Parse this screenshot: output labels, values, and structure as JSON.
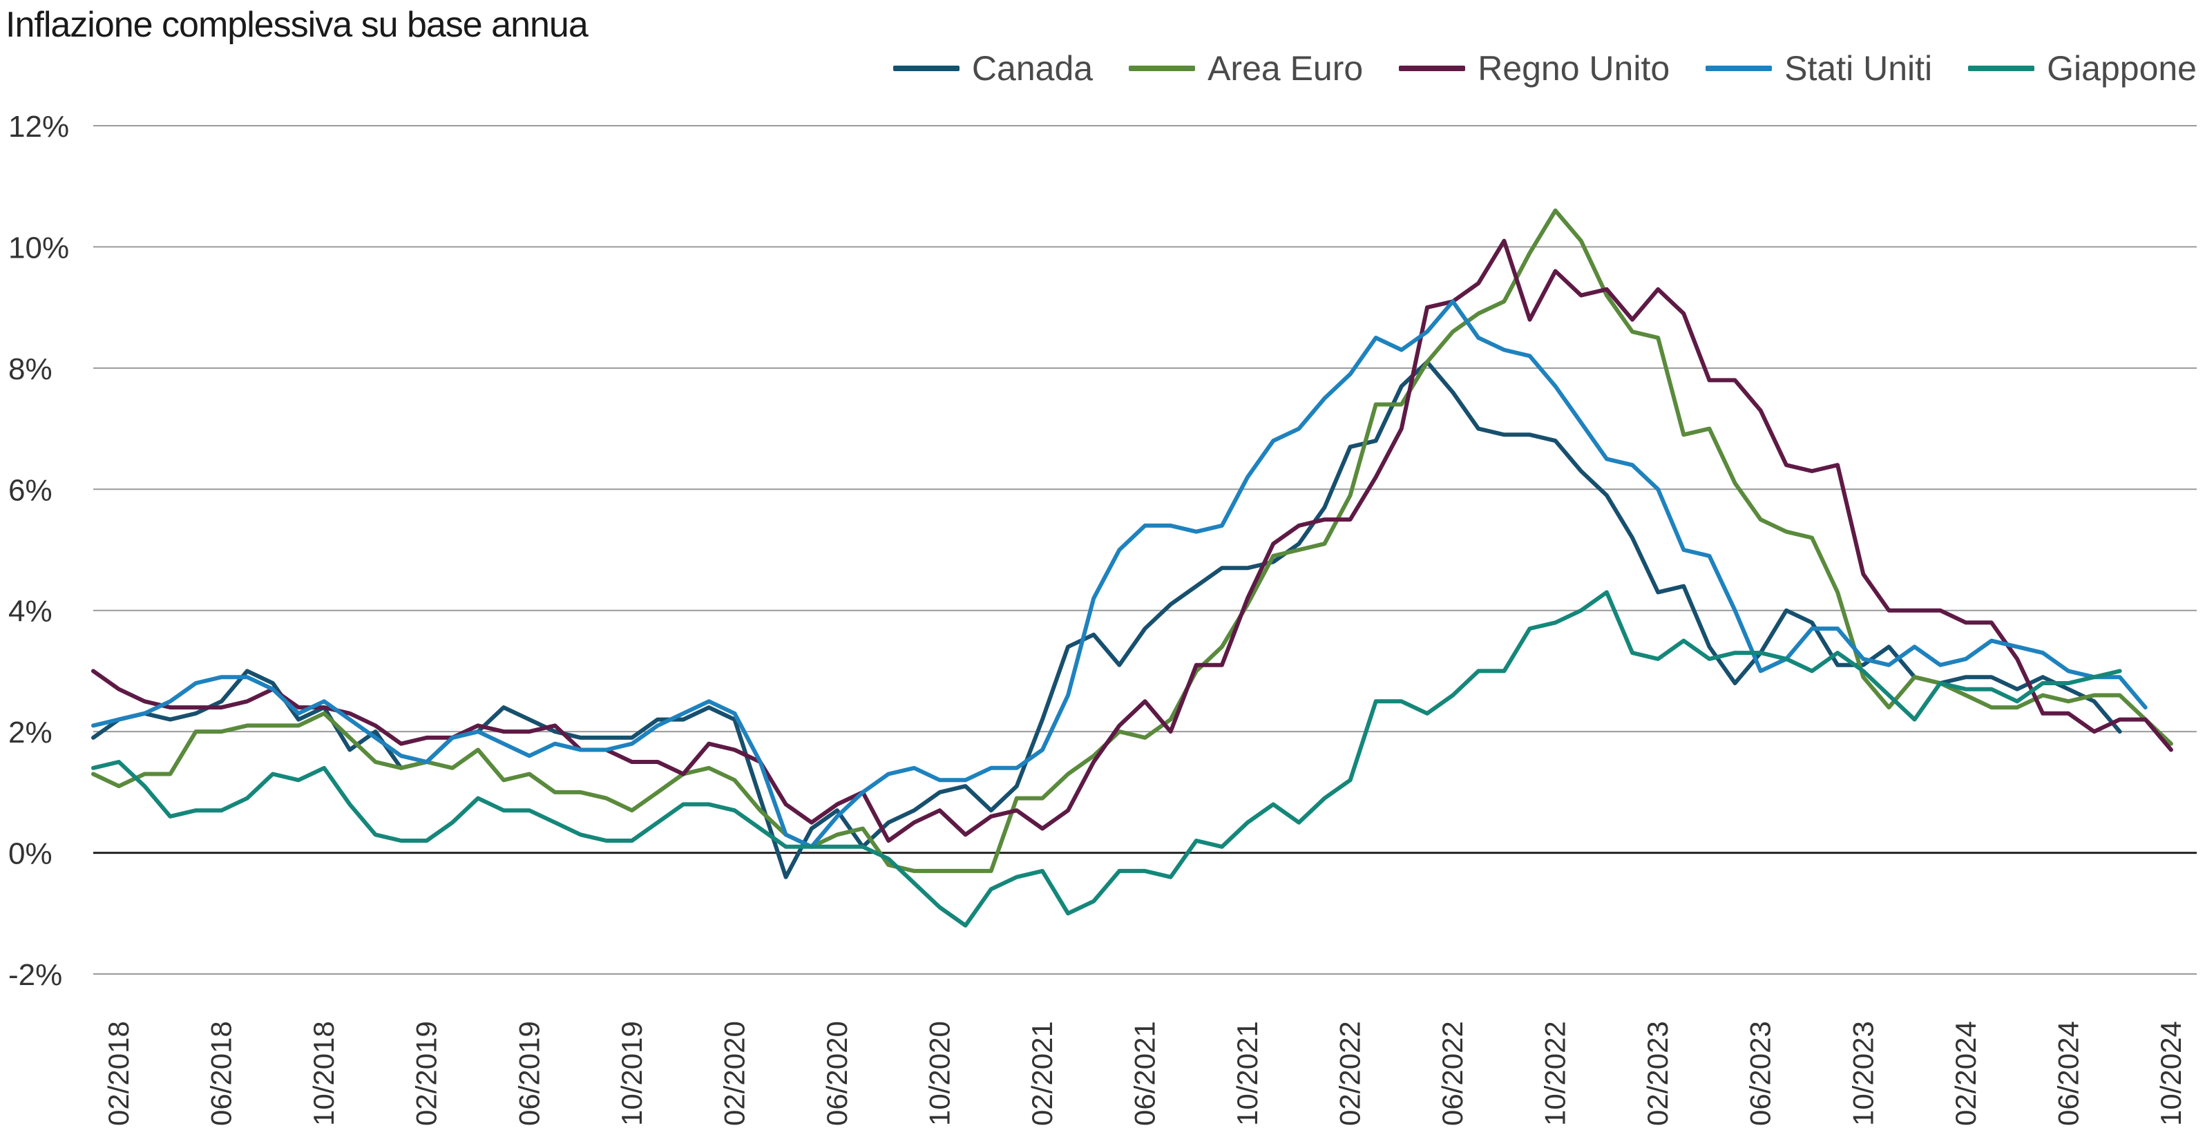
{
  "chart_data": {
    "type": "line",
    "title": "Inflazione complessiva su base annua",
    "xlabel": "",
    "ylabel": "",
    "ylim": [
      -2,
      12
    ],
    "y_ticks": [
      -2,
      0,
      2,
      4,
      6,
      8,
      10,
      12
    ],
    "y_tick_labels": [
      "-2%",
      "0%",
      "2%",
      "4%",
      "6%",
      "8%",
      "10%",
      "12%"
    ],
    "x_start": "01/2018",
    "x_range_months": [
      0,
      82
    ],
    "x_tick_labels": [
      "02/2018",
      "06/2018",
      "10/2018",
      "02/2019",
      "06/2019",
      "10/2019",
      "02/2020",
      "06/2020",
      "10/2020",
      "02/2021",
      "06/2021",
      "10/2021",
      "02/2022",
      "06/2022",
      "10/2022",
      "02/2023",
      "06/2023",
      "10/2023",
      "02/2024",
      "06/2024",
      "10/2024"
    ],
    "x_tick_months": [
      1,
      5,
      9,
      13,
      17,
      21,
      25,
      29,
      33,
      37,
      41,
      45,
      49,
      53,
      57,
      61,
      65,
      69,
      73,
      77,
      81
    ],
    "legend_position": "top-right",
    "series": [
      {
        "name": "Canada",
        "color": "#17506e",
        "start_month": 0,
        "values": [
          1.9,
          2.2,
          2.3,
          2.2,
          2.3,
          2.5,
          3.0,
          2.8,
          2.2,
          2.4,
          1.7,
          2.0,
          1.4,
          1.5,
          1.9,
          2.0,
          2.4,
          2.2,
          2.0,
          1.9,
          1.9,
          1.9,
          2.2,
          2.2,
          2.4,
          2.2,
          0.9,
          -0.4,
          0.4,
          0.7,
          0.1,
          0.5,
          0.7,
          1.0,
          1.1,
          0.7,
          1.1,
          2.2,
          3.4,
          3.6,
          3.1,
          3.7,
          4.1,
          4.4,
          4.7,
          4.7,
          4.8,
          5.1,
          5.7,
          6.7,
          6.8,
          7.7,
          8.1,
          7.6,
          7.0,
          6.9,
          6.9,
          6.8,
          6.3,
          5.9,
          5.2,
          4.3,
          4.4,
          3.4,
          2.8,
          3.3,
          4.0,
          3.8,
          3.1,
          3.1,
          3.4,
          2.9,
          2.8,
          2.9,
          2.9,
          2.7,
          2.9,
          2.7,
          2.5,
          2.0
        ]
      },
      {
        "name": "Area Euro",
        "color": "#5a8a3c",
        "start_month": 0,
        "values": [
          1.3,
          1.1,
          1.3,
          1.3,
          2.0,
          2.0,
          2.1,
          2.1,
          2.1,
          2.3,
          1.9,
          1.5,
          1.4,
          1.5,
          1.4,
          1.7,
          1.2,
          1.3,
          1.0,
          1.0,
          0.9,
          0.7,
          1.0,
          1.3,
          1.4,
          1.2,
          0.7,
          0.3,
          0.1,
          0.3,
          0.4,
          -0.2,
          -0.3,
          -0.3,
          -0.3,
          -0.3,
          0.9,
          0.9,
          1.3,
          1.6,
          2.0,
          1.9,
          2.2,
          3.0,
          3.4,
          4.1,
          4.9,
          5.0,
          5.1,
          5.9,
          7.4,
          7.4,
          8.1,
          8.6,
          8.9,
          9.1,
          9.9,
          10.6,
          10.1,
          9.2,
          8.6,
          8.5,
          6.9,
          7.0,
          6.1,
          5.5,
          5.3,
          5.2,
          4.3,
          2.9,
          2.4,
          2.9,
          2.8,
          2.6,
          2.4,
          2.4,
          2.6,
          2.5,
          2.6,
          2.6,
          2.2,
          1.8
        ]
      },
      {
        "name": "Regno Unito",
        "color": "#5e1a45",
        "start_month": 0,
        "values": [
          3.0,
          2.7,
          2.5,
          2.4,
          2.4,
          2.4,
          2.5,
          2.7,
          2.4,
          2.4,
          2.3,
          2.1,
          1.8,
          1.9,
          1.9,
          2.1,
          2.0,
          2.0,
          2.1,
          1.7,
          1.7,
          1.5,
          1.5,
          1.3,
          1.8,
          1.7,
          1.5,
          0.8,
          0.5,
          0.8,
          1.0,
          0.2,
          0.5,
          0.7,
          0.3,
          0.6,
          0.7,
          0.4,
          0.7,
          1.5,
          2.1,
          2.5,
          2.0,
          3.1,
          3.1,
          4.2,
          5.1,
          5.4,
          5.5,
          5.5,
          6.2,
          7.0,
          9.0,
          9.1,
          9.4,
          10.1,
          8.8,
          9.6,
          9.2,
          9.3,
          8.8,
          9.3,
          8.9,
          7.8,
          7.8,
          7.3,
          6.4,
          6.3,
          6.4,
          4.6,
          4.0,
          4.0,
          4.0,
          3.8,
          3.8,
          3.2,
          2.3,
          2.3,
          2.0,
          2.2,
          2.2,
          1.7
        ]
      },
      {
        "name": "Stati Uniti",
        "color": "#1e82be",
        "start_month": 0,
        "values": [
          2.1,
          2.2,
          2.3,
          2.5,
          2.8,
          2.9,
          2.9,
          2.7,
          2.3,
          2.5,
          2.2,
          1.9,
          1.6,
          1.5,
          1.9,
          2.0,
          1.8,
          1.6,
          1.8,
          1.7,
          1.7,
          1.8,
          2.1,
          2.3,
          2.5,
          2.3,
          1.5,
          0.3,
          0.1,
          0.6,
          1.0,
          1.3,
          1.4,
          1.2,
          1.2,
          1.4,
          1.4,
          1.7,
          2.6,
          4.2,
          5.0,
          5.4,
          5.4,
          5.3,
          5.4,
          6.2,
          6.8,
          7.0,
          7.5,
          7.9,
          8.5,
          8.3,
          8.6,
          9.1,
          8.5,
          8.3,
          8.2,
          7.7,
          7.1,
          6.5,
          6.4,
          6.0,
          5.0,
          4.9,
          4.0,
          3.0,
          3.2,
          3.7,
          3.7,
          3.2,
          3.1,
          3.4,
          3.1,
          3.2,
          3.5,
          3.4,
          3.3,
          3.0,
          2.9,
          2.9,
          2.4
        ]
      },
      {
        "name": "Giappone",
        "color": "#14877a",
        "start_month": 0,
        "values": [
          1.4,
          1.5,
          1.1,
          0.6,
          0.7,
          0.7,
          0.9,
          1.3,
          1.2,
          1.4,
          0.8,
          0.3,
          0.2,
          0.2,
          0.5,
          0.9,
          0.7,
          0.7,
          0.5,
          0.3,
          0.2,
          0.2,
          0.5,
          0.8,
          0.8,
          0.7,
          0.4,
          0.1,
          0.1,
          0.1,
          0.1,
          -0.1,
          -0.5,
          -0.9,
          -1.2,
          -0.6,
          -0.4,
          -0.3,
          -1.0,
          -0.8,
          -0.3,
          -0.3,
          -0.4,
          0.2,
          0.1,
          0.5,
          0.8,
          0.5,
          0.9,
          1.2,
          2.5,
          2.5,
          2.3,
          2.6,
          3.0,
          3.0,
          3.7,
          3.8,
          4.0,
          4.3,
          3.3,
          3.2,
          3.5,
          3.2,
          3.3,
          3.3,
          3.2,
          3.0,
          3.3,
          3.0,
          2.6,
          2.2,
          2.8,
          2.7,
          2.7,
          2.5,
          2.8,
          2.8,
          2.9,
          3.0
        ]
      }
    ]
  }
}
